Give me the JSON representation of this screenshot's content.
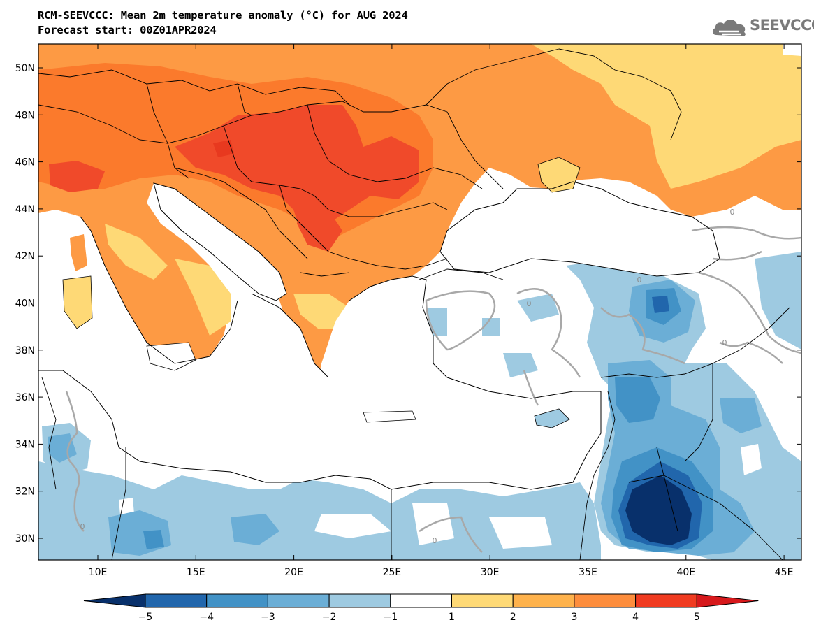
{
  "header": {
    "title_line1": "RCM-SEEVCCC: Mean 2m temperature anomaly (°C) for AUG 2024",
    "title_line2": "Forecast start: 00Z01APR2024"
  },
  "logo": {
    "text": "SEEVCCC",
    "icon": "cloud-icon"
  },
  "map": {
    "lon_labels": [
      "10E",
      "15E",
      "20E",
      "25E",
      "30E",
      "35E",
      "40E",
      "45E"
    ],
    "lat_labels": [
      "50N",
      "48N",
      "46N",
      "44N",
      "42N",
      "40N",
      "38N",
      "36N",
      "34N",
      "32N",
      "30N"
    ],
    "contour_labels": [
      "0",
      "0",
      "0",
      "0",
      "0",
      "0"
    ]
  },
  "colorbar": {
    "labels": [
      "−5",
      "−4",
      "−3",
      "−2",
      "−1",
      "1",
      "2",
      "3",
      "4",
      "5"
    ],
    "colors": [
      "#08306b",
      "#2166ac",
      "#4292c6",
      "#6baed6",
      "#9ecae1",
      "#ffffff",
      "#fed976",
      "#feb24c",
      "#fd8d3c",
      "#f03b20",
      "#d7191c"
    ]
  },
  "palette": {
    "ocean": "#ffffff",
    "orange_light": "#fed976",
    "orange": "#fd9a44",
    "orange_dark": "#fb7a2c",
    "red": "#f04a2a",
    "blue_light": "#9ecae1",
    "blue": "#6baed6",
    "blue_mid": "#4292c6",
    "blue_dark": "#2166ac",
    "blue_deep": "#08306b"
  }
}
